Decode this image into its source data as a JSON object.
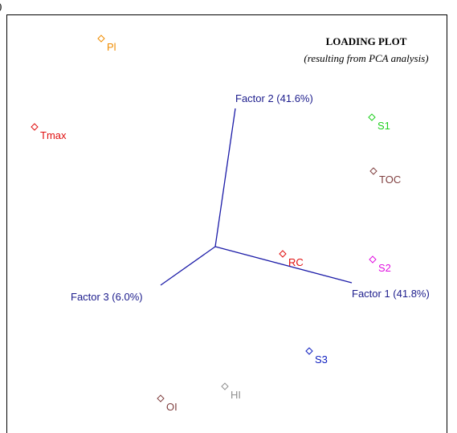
{
  "panel_label": ")",
  "title": "LOADING PLOT",
  "subtitle": "(resulting from PCA analysis)",
  "axes": [
    {
      "label": "Factor 1 (41.8%)"
    },
    {
      "label": "Factor 2 (41.6%)"
    },
    {
      "label": "Factor 3 (6.0%)"
    }
  ],
  "points": [
    {
      "label": "Pl"
    },
    {
      "label": "Tmax"
    },
    {
      "label": "S1"
    },
    {
      "label": "TOC"
    },
    {
      "label": "RC"
    },
    {
      "label": "S2"
    },
    {
      "label": "S3"
    },
    {
      "label": "HI"
    },
    {
      "label": "OI"
    }
  ]
}
